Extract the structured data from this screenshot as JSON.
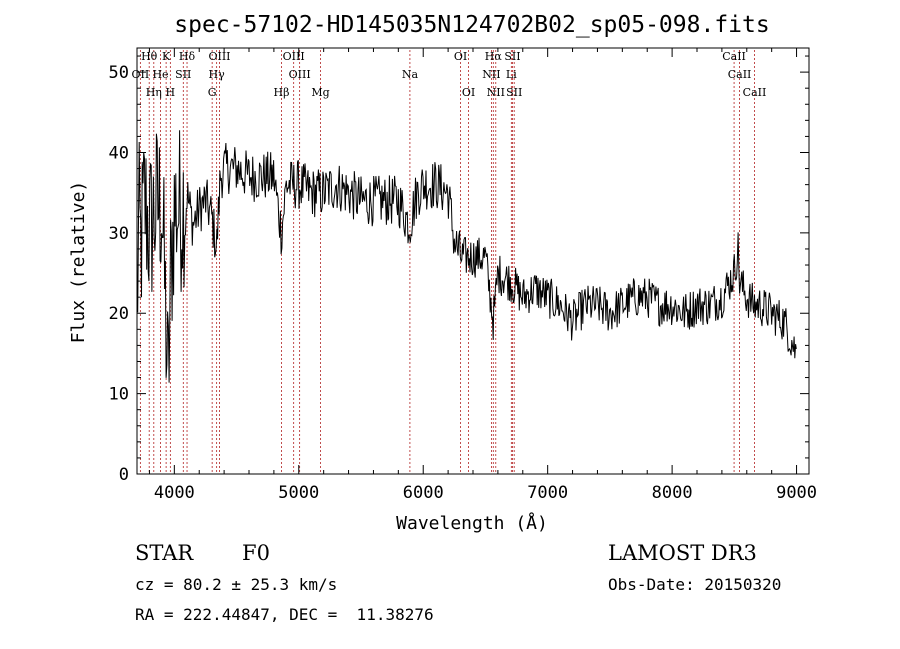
{
  "header": {
    "title": "spec-57102-HD145035N124702B02_sp05-098.fits"
  },
  "chart_data": {
    "type": "line",
    "title": "spec-57102-HD145035N124702B02_sp05-098.fits",
    "xlabel": "Wavelength (Å)",
    "ylabel": "Flux (relative)",
    "xlim": [
      3700,
      9100
    ],
    "ylim": [
      0,
      53
    ],
    "x_ticks": [
      4000,
      5000,
      6000,
      7000,
      8000,
      9000
    ],
    "y_ticks": [
      0,
      10,
      20,
      30,
      40,
      50
    ],
    "grid": false,
    "line_color": "#000000",
    "marker_color": "#b22222",
    "spectrum_anchors": [
      [
        3700,
        20
      ],
      [
        3715,
        31
      ],
      [
        3730,
        28
      ],
      [
        3760,
        34
      ],
      [
        3800,
        30
      ],
      [
        3850,
        33
      ],
      [
        3900,
        34
      ],
      [
        3930,
        20
      ],
      [
        3950,
        10
      ],
      [
        3970,
        24
      ],
      [
        4000,
        33
      ],
      [
        4050,
        33
      ],
      [
        4100,
        35
      ],
      [
        4150,
        31
      ],
      [
        4200,
        33
      ],
      [
        4250,
        34
      ],
      [
        4300,
        32
      ],
      [
        4340,
        28
      ],
      [
        4370,
        37
      ],
      [
        4400,
        38
      ],
      [
        4500,
        38
      ],
      [
        4600,
        37
      ],
      [
        4700,
        37
      ],
      [
        4800,
        37
      ],
      [
        4861,
        30
      ],
      [
        4900,
        36
      ],
      [
        5000,
        36
      ],
      [
        5100,
        35
      ],
      [
        5200,
        35
      ],
      [
        5300,
        36
      ],
      [
        5400,
        35
      ],
      [
        5500,
        34
      ],
      [
        5600,
        34
      ],
      [
        5700,
        34
      ],
      [
        5800,
        34
      ],
      [
        5890,
        31
      ],
      [
        5950,
        35
      ],
      [
        6000,
        36
      ],
      [
        6100,
        36
      ],
      [
        6200,
        35
      ],
      [
        6250,
        29
      ],
      [
        6300,
        27
      ],
      [
        6400,
        27
      ],
      [
        6500,
        27
      ],
      [
        6563,
        19
      ],
      [
        6600,
        25
      ],
      [
        6700,
        24
      ],
      [
        6800,
        22
      ],
      [
        6900,
        23
      ],
      [
        7000,
        22
      ],
      [
        7100,
        21
      ],
      [
        7200,
        19
      ],
      [
        7300,
        21
      ],
      [
        7400,
        21
      ],
      [
        7500,
        20
      ],
      [
        7600,
        21
      ],
      [
        7700,
        22
      ],
      [
        7800,
        22
      ],
      [
        7900,
        21
      ],
      [
        8000,
        21
      ],
      [
        8100,
        20
      ],
      [
        8200,
        21
      ],
      [
        8300,
        21
      ],
      [
        8400,
        22
      ],
      [
        8498,
        25
      ],
      [
        8530,
        28
      ],
      [
        8542,
        24
      ],
      [
        8600,
        22
      ],
      [
        8662,
        21
      ],
      [
        8700,
        21
      ],
      [
        8800,
        20
      ],
      [
        8900,
        19
      ],
      [
        9000,
        15
      ]
    ],
    "lines": [
      {
        "label": "Hθ",
        "wl": 3798,
        "row": 0
      },
      {
        "label": "K",
        "wl": 3934,
        "row": 0
      },
      {
        "label": "Hδ",
        "wl": 4102,
        "row": 0
      },
      {
        "label": "OIII",
        "wl": 4363,
        "row": 0
      },
      {
        "label": "OIII",
        "wl": 4959,
        "row": 0
      },
      {
        "label": "OI",
        "wl": 6300,
        "row": 0
      },
      {
        "label": "Hα",
        "wl": 6563,
        "row": 0
      },
      {
        "label": "SII",
        "wl": 6717,
        "row": 0
      },
      {
        "label": "CaII",
        "wl": 8498,
        "row": 0
      },
      {
        "label": "OII",
        "wl": 3727,
        "row": 1
      },
      {
        "label": "He",
        "wl": 3889,
        "row": 1
      },
      {
        "label": "SII",
        "wl": 4072,
        "row": 1
      },
      {
        "label": "Hγ",
        "wl": 4340,
        "row": 1
      },
      {
        "label": "OIII",
        "wl": 5007,
        "row": 1
      },
      {
        "label": "Na",
        "wl": 5893,
        "row": 1
      },
      {
        "label": "NII",
        "wl": 6548,
        "row": 1
      },
      {
        "label": "Li",
        "wl": 6708,
        "row": 1
      },
      {
        "label": "CaII",
        "wl": 8542,
        "row": 1
      },
      {
        "label": "Hη",
        "wl": 3835,
        "row": 2
      },
      {
        "label": "H",
        "wl": 3968,
        "row": 2
      },
      {
        "label": "G",
        "wl": 4304,
        "row": 2
      },
      {
        "label": "Hβ",
        "wl": 4861,
        "row": 2
      },
      {
        "label": "Mg",
        "wl": 5175,
        "row": 2
      },
      {
        "label": "OI",
        "wl": 6364,
        "row": 2
      },
      {
        "label": "NII",
        "wl": 6583,
        "row": 2
      },
      {
        "label": "SII",
        "wl": 6731,
        "row": 2
      },
      {
        "label": "CaII",
        "wl": 8662,
        "row": 2
      }
    ]
  },
  "info": {
    "object_class": "STAR",
    "subclass": "F0",
    "survey": "LAMOST DR3",
    "redshift": "cz = 80.2 ± 25.3 km/s",
    "obs_date": "Obs-Date: 20150320",
    "coords": "RA = 222.44847, DEC =  11.38276"
  }
}
